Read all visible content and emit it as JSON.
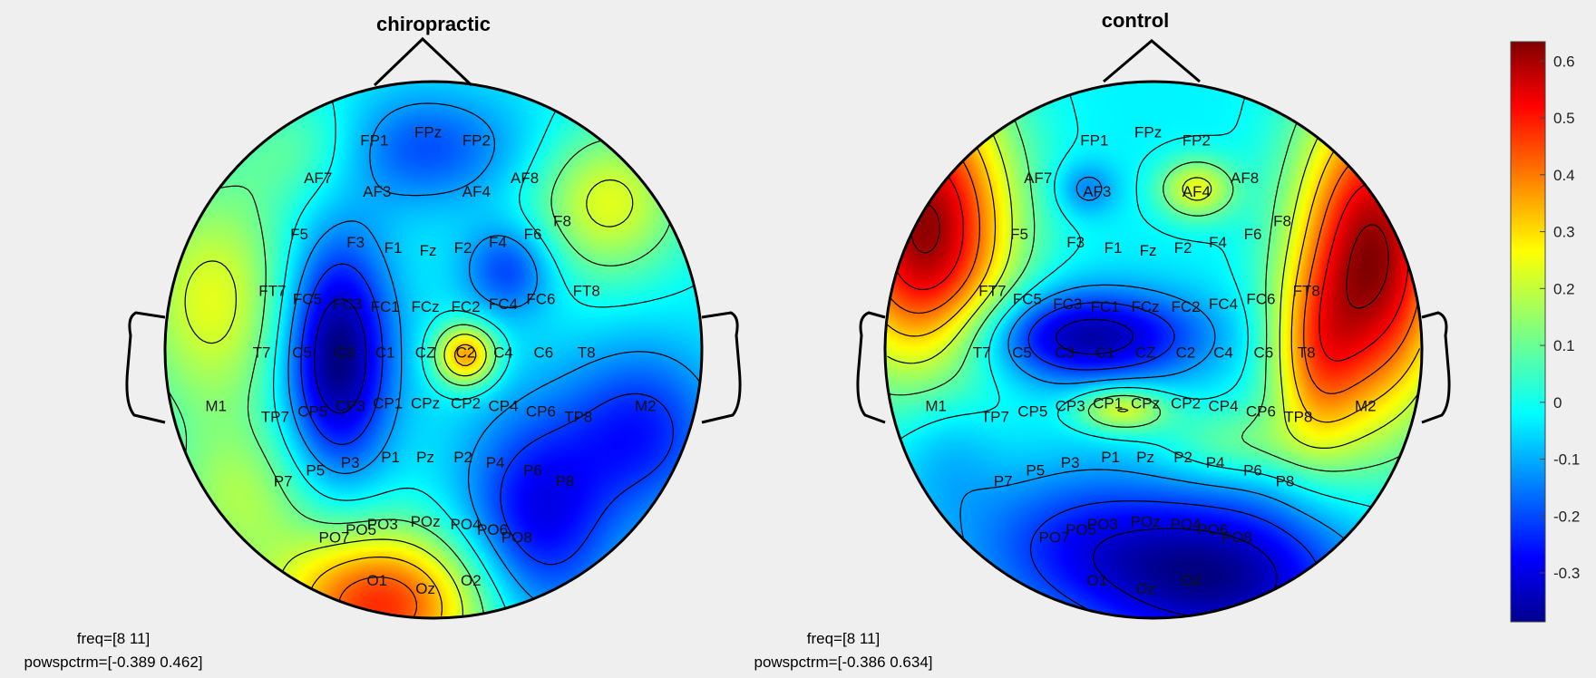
{
  "chart_data": [
    {
      "type": "heatmap",
      "title": "chiropractic",
      "info": {
        "freq": "freq=[8 11]",
        "range": "powspctrm=[-0.389 0.462]"
      },
      "electrodes": [
        {
          "label": "FP1",
          "x": -0.22,
          "y": 0.78
        },
        {
          "label": "FPz",
          "x": -0.02,
          "y": 0.81
        },
        {
          "label": "FP2",
          "x": 0.16,
          "y": 0.78
        },
        {
          "label": "AF7",
          "x": -0.43,
          "y": 0.64
        },
        {
          "label": "AF3",
          "x": -0.21,
          "y": 0.59
        },
        {
          "label": "AF4",
          "x": 0.16,
          "y": 0.59
        },
        {
          "label": "AF8",
          "x": 0.34,
          "y": 0.64
        },
        {
          "label": "F5",
          "x": -0.5,
          "y": 0.43
        },
        {
          "label": "F3",
          "x": -0.29,
          "y": 0.4
        },
        {
          "label": "F1",
          "x": -0.15,
          "y": 0.38
        },
        {
          "label": "Fz",
          "x": -0.02,
          "y": 0.37
        },
        {
          "label": "F2",
          "x": 0.11,
          "y": 0.38
        },
        {
          "label": "F4",
          "x": 0.24,
          "y": 0.4
        },
        {
          "label": "F6",
          "x": 0.37,
          "y": 0.43
        },
        {
          "label": "F8",
          "x": 0.48,
          "y": 0.48
        },
        {
          "label": "FT7",
          "x": -0.6,
          "y": 0.22
        },
        {
          "label": "FC5",
          "x": -0.47,
          "y": 0.19
        },
        {
          "label": "FC3",
          "x": -0.32,
          "y": 0.17
        },
        {
          "label": "FC1",
          "x": -0.18,
          "y": 0.16
        },
        {
          "label": "FCz",
          "x": -0.03,
          "y": 0.16
        },
        {
          "label": "FC2",
          "x": 0.12,
          "y": 0.16
        },
        {
          "label": "FC4",
          "x": 0.26,
          "y": 0.17
        },
        {
          "label": "FC6",
          "x": 0.4,
          "y": 0.19
        },
        {
          "label": "FT8",
          "x": 0.57,
          "y": 0.22
        },
        {
          "label": "T7",
          "x": -0.64,
          "y": -0.01
        },
        {
          "label": "C5",
          "x": -0.49,
          "y": -0.01
        },
        {
          "label": "C3",
          "x": -0.33,
          "y": -0.01
        },
        {
          "label": "C1",
          "x": -0.18,
          "y": -0.01
        },
        {
          "label": "CZ",
          "x": -0.03,
          "y": -0.01
        },
        {
          "label": "C2",
          "x": 0.12,
          "y": -0.01
        },
        {
          "label": "C4",
          "x": 0.26,
          "y": -0.01
        },
        {
          "label": "C6",
          "x": 0.41,
          "y": -0.01
        },
        {
          "label": "T8",
          "x": 0.57,
          "y": -0.01
        },
        {
          "label": "M1",
          "x": -0.81,
          "y": -0.21
        },
        {
          "label": "TP7",
          "x": -0.59,
          "y": -0.25
        },
        {
          "label": "CP5",
          "x": -0.45,
          "y": -0.23
        },
        {
          "label": "CP3",
          "x": -0.31,
          "y": -0.21
        },
        {
          "label": "CP1",
          "x": -0.17,
          "y": -0.2
        },
        {
          "label": "CPz",
          "x": -0.03,
          "y": -0.2
        },
        {
          "label": "CP2",
          "x": 0.12,
          "y": -0.2
        },
        {
          "label": "CP4",
          "x": 0.26,
          "y": -0.21
        },
        {
          "label": "CP6",
          "x": 0.4,
          "y": -0.23
        },
        {
          "label": "TP8",
          "x": 0.54,
          "y": -0.25
        },
        {
          "label": "M2",
          "x": 0.79,
          "y": -0.21
        },
        {
          "label": "P7",
          "x": -0.56,
          "y": -0.49
        },
        {
          "label": "P5",
          "x": -0.44,
          "y": -0.45
        },
        {
          "label": "P3",
          "x": -0.31,
          "y": -0.42
        },
        {
          "label": "P1",
          "x": -0.16,
          "y": -0.4
        },
        {
          "label": "Pz",
          "x": -0.03,
          "y": -0.4
        },
        {
          "label": "P2",
          "x": 0.11,
          "y": -0.4
        },
        {
          "label": "P4",
          "x": 0.23,
          "y": -0.42
        },
        {
          "label": "P6",
          "x": 0.37,
          "y": -0.45
        },
        {
          "label": "P8",
          "x": 0.49,
          "y": -0.49
        },
        {
          "label": "PO7",
          "x": -0.37,
          "y": -0.7
        },
        {
          "label": "PO5",
          "x": -0.27,
          "y": -0.67
        },
        {
          "label": "PO3",
          "x": -0.19,
          "y": -0.65
        },
        {
          "label": "POz",
          "x": -0.03,
          "y": -0.64
        },
        {
          "label": "PO4",
          "x": 0.12,
          "y": -0.65
        },
        {
          "label": "PO6",
          "x": 0.22,
          "y": -0.67
        },
        {
          "label": "PO8",
          "x": 0.31,
          "y": -0.7
        },
        {
          "label": "O1",
          "x": -0.21,
          "y": -0.86
        },
        {
          "label": "Oz",
          "x": -0.03,
          "y": -0.89
        },
        {
          "label": "O2",
          "x": 0.14,
          "y": -0.86
        }
      ],
      "blobs": [
        {
          "x": -0.36,
          "y": -0.02,
          "sx": 0.14,
          "sy": 0.3,
          "a": -0.75
        },
        {
          "x": 0.12,
          "y": -0.02,
          "sx": 0.08,
          "sy": 0.08,
          "a": 0.7
        },
        {
          "x": 0.39,
          "y": -0.62,
          "sx": 0.2,
          "sy": 0.28,
          "a": -0.5
        },
        {
          "x": 0.78,
          "y": -0.3,
          "sx": 0.2,
          "sy": 0.22,
          "a": -0.4
        },
        {
          "x": -0.2,
          "y": -0.95,
          "sx": 0.28,
          "sy": 0.2,
          "a": 0.9
        },
        {
          "x": -0.82,
          "y": 0.18,
          "sx": 0.22,
          "sy": 0.32,
          "a": 0.45
        },
        {
          "x": 0.65,
          "y": 0.55,
          "sx": 0.2,
          "sy": 0.2,
          "a": 0.45
        },
        {
          "x": 0.28,
          "y": 0.3,
          "sx": 0.12,
          "sy": 0.12,
          "a": -0.35
        },
        {
          "x": -0.1,
          "y": 0.75,
          "sx": 0.3,
          "sy": 0.15,
          "a": -0.35
        },
        {
          "x": -0.72,
          "y": -0.55,
          "sx": 0.2,
          "sy": 0.2,
          "a": 0.3
        },
        {
          "x": -0.45,
          "y": 0.75,
          "sx": 0.2,
          "sy": 0.15,
          "a": 0.3
        }
      ]
    },
    {
      "type": "heatmap",
      "title": "control",
      "info": {
        "freq": "freq=[8 11]",
        "range": "powspctrm=[-0.386 0.634]"
      },
      "electrodes": [
        {
          "label": "FP1",
          "x": -0.22,
          "y": 0.78
        },
        {
          "label": "FPz",
          "x": -0.02,
          "y": 0.81
        },
        {
          "label": "FP2",
          "x": 0.16,
          "y": 0.78
        },
        {
          "label": "AF7",
          "x": -0.43,
          "y": 0.64
        },
        {
          "label": "AF3",
          "x": -0.21,
          "y": 0.59
        },
        {
          "label": "AF4",
          "x": 0.16,
          "y": 0.59
        },
        {
          "label": "AF8",
          "x": 0.34,
          "y": 0.64
        },
        {
          "label": "F5",
          "x": -0.5,
          "y": 0.43
        },
        {
          "label": "F3",
          "x": -0.29,
          "y": 0.4
        },
        {
          "label": "F1",
          "x": -0.15,
          "y": 0.38
        },
        {
          "label": "Fz",
          "x": -0.02,
          "y": 0.37
        },
        {
          "label": "F2",
          "x": 0.11,
          "y": 0.38
        },
        {
          "label": "F4",
          "x": 0.24,
          "y": 0.4
        },
        {
          "label": "F6",
          "x": 0.37,
          "y": 0.43
        },
        {
          "label": "F8",
          "x": 0.48,
          "y": 0.48
        },
        {
          "label": "FT7",
          "x": -0.6,
          "y": 0.22
        },
        {
          "label": "FC5",
          "x": -0.47,
          "y": 0.19
        },
        {
          "label": "FC3",
          "x": -0.32,
          "y": 0.17
        },
        {
          "label": "FC1",
          "x": -0.18,
          "y": 0.16
        },
        {
          "label": "FCz",
          "x": -0.03,
          "y": 0.16
        },
        {
          "label": "FC2",
          "x": 0.12,
          "y": 0.16
        },
        {
          "label": "FC4",
          "x": 0.26,
          "y": 0.17
        },
        {
          "label": "FC6",
          "x": 0.4,
          "y": 0.19
        },
        {
          "label": "FT8",
          "x": 0.57,
          "y": 0.22
        },
        {
          "label": "T7",
          "x": -0.64,
          "y": -0.01
        },
        {
          "label": "C5",
          "x": -0.49,
          "y": -0.01
        },
        {
          "label": "C3",
          "x": -0.33,
          "y": -0.01
        },
        {
          "label": "C1",
          "x": -0.18,
          "y": -0.01
        },
        {
          "label": "CZ",
          "x": -0.03,
          "y": -0.01
        },
        {
          "label": "C2",
          "x": 0.12,
          "y": -0.01
        },
        {
          "label": "C4",
          "x": 0.26,
          "y": -0.01
        },
        {
          "label": "C6",
          "x": 0.41,
          "y": -0.01
        },
        {
          "label": "T8",
          "x": 0.57,
          "y": -0.01
        },
        {
          "label": "M1",
          "x": -0.81,
          "y": -0.21
        },
        {
          "label": "TP7",
          "x": -0.59,
          "y": -0.25
        },
        {
          "label": "CP5",
          "x": -0.45,
          "y": -0.23
        },
        {
          "label": "CP3",
          "x": -0.31,
          "y": -0.21
        },
        {
          "label": "CP1",
          "x": -0.17,
          "y": -0.2
        },
        {
          "label": "CPz",
          "x": -0.03,
          "y": -0.2
        },
        {
          "label": "CP2",
          "x": 0.12,
          "y": -0.2
        },
        {
          "label": "CP4",
          "x": 0.26,
          "y": -0.21
        },
        {
          "label": "CP6",
          "x": 0.4,
          "y": -0.23
        },
        {
          "label": "TP8",
          "x": 0.54,
          "y": -0.25
        },
        {
          "label": "M2",
          "x": 0.79,
          "y": -0.21
        },
        {
          "label": "P7",
          "x": -0.56,
          "y": -0.49
        },
        {
          "label": "P5",
          "x": -0.44,
          "y": -0.45
        },
        {
          "label": "P3",
          "x": -0.31,
          "y": -0.42
        },
        {
          "label": "P1",
          "x": -0.16,
          "y": -0.4
        },
        {
          "label": "Pz",
          "x": -0.03,
          "y": -0.4
        },
        {
          "label": "P2",
          "x": 0.11,
          "y": -0.4
        },
        {
          "label": "P4",
          "x": 0.23,
          "y": -0.42
        },
        {
          "label": "P6",
          "x": 0.37,
          "y": -0.45
        },
        {
          "label": "P8",
          "x": 0.49,
          "y": -0.49
        },
        {
          "label": "PO7",
          "x": -0.37,
          "y": -0.7
        },
        {
          "label": "PO5",
          "x": -0.27,
          "y": -0.67
        },
        {
          "label": "PO3",
          "x": -0.19,
          "y": -0.65
        },
        {
          "label": "POz",
          "x": -0.03,
          "y": -0.64
        },
        {
          "label": "PO4",
          "x": 0.12,
          "y": -0.65
        },
        {
          "label": "PO6",
          "x": 0.22,
          "y": -0.67
        },
        {
          "label": "PO8",
          "x": 0.31,
          "y": -0.7
        },
        {
          "label": "O1",
          "x": -0.21,
          "y": -0.86
        },
        {
          "label": "Oz",
          "x": -0.03,
          "y": -0.89
        },
        {
          "label": "O2",
          "x": 0.14,
          "y": -0.86
        }
      ],
      "blobs": [
        {
          "x": -0.85,
          "y": 0.45,
          "sx": 0.22,
          "sy": 0.38,
          "a": 1.3
        },
        {
          "x": 0.82,
          "y": 0.35,
          "sx": 0.2,
          "sy": 0.42,
          "a": 1.3
        },
        {
          "x": 0.6,
          "y": -0.05,
          "sx": 0.12,
          "sy": 0.25,
          "a": 0.5
        },
        {
          "x": -0.25,
          "y": 0.05,
          "sx": 0.3,
          "sy": 0.12,
          "a": -0.7
        },
        {
          "x": 0.25,
          "y": -0.85,
          "sx": 0.35,
          "sy": 0.22,
          "a": -0.7
        },
        {
          "x": -0.3,
          "y": -0.72,
          "sx": 0.3,
          "sy": 0.2,
          "a": -0.35
        },
        {
          "x": -0.12,
          "y": -0.22,
          "sx": 0.12,
          "sy": 0.06,
          "a": 0.5
        },
        {
          "x": 0.16,
          "y": 0.6,
          "sx": 0.1,
          "sy": 0.08,
          "a": 0.5
        },
        {
          "x": 0.3,
          "y": -0.35,
          "sx": 0.2,
          "sy": 0.1,
          "a": 0.25
        },
        {
          "x": -0.25,
          "y": 0.6,
          "sx": 0.08,
          "sy": 0.07,
          "a": -0.25
        },
        {
          "x": -0.78,
          "y": -0.35,
          "sx": 0.15,
          "sy": 0.2,
          "a": -0.2
        }
      ]
    }
  ],
  "colorbar": {
    "min": -0.386,
    "max": 0.634,
    "ticks": [
      "0.6",
      "0.5",
      "0.4",
      "0.3",
      "0.2",
      "0.1",
      "0",
      "-0.1",
      "-0.2",
      "-0.3"
    ],
    "tick_values": [
      0.6,
      0.5,
      0.4,
      0.3,
      0.2,
      0.1,
      0,
      -0.1,
      -0.2,
      -0.3
    ]
  }
}
